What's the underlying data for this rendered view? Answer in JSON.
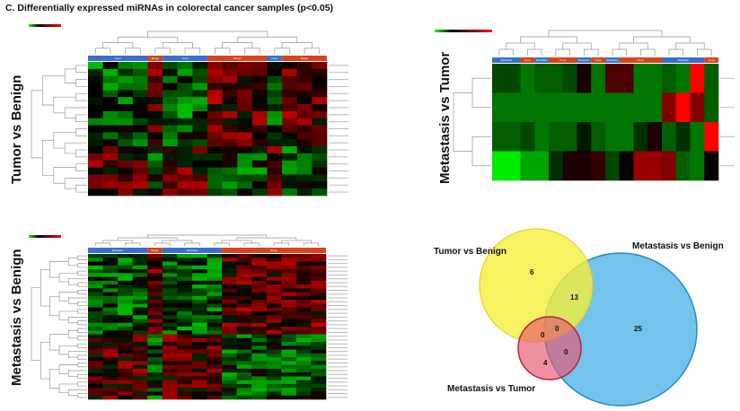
{
  "figure": {
    "title": "C. Differentially expressed miRNAs in colorectal cancer samples (p<0.05)"
  },
  "colors": {
    "low": "#00ff00",
    "mid": "#000000",
    "high": "#ff0000",
    "group_a": "#3a6fcf",
    "group_b": "#d9441c"
  },
  "chart_data": [
    {
      "type": "heatmap",
      "title": "Tumor vs Benign",
      "groups": [
        {
          "label": "Tumor",
          "color": "#3a6fcf",
          "cols": 4
        },
        {
          "label": "Benign",
          "color": "#d9441c",
          "cols": 1
        },
        {
          "label": "Tumor",
          "color": "#3a6fcf",
          "cols": 3
        },
        {
          "label": "Benign",
          "color": "#d9441c",
          "cols": 4
        },
        {
          "label": "Tumor",
          "color": "#3a6fcf",
          "cols": 1
        },
        {
          "label": "Benign",
          "color": "#d9441c",
          "cols": 3
        }
      ],
      "rows": 19,
      "color_scale": "green-black-red"
    },
    {
      "type": "heatmap",
      "title": "Metastasis vs Benign",
      "groups": [
        {
          "label": "Metastasis",
          "color": "#3a6fcf",
          "cols": 4
        },
        {
          "label": "Benign",
          "color": "#d9441c",
          "cols": 1
        },
        {
          "label": "Metastasis",
          "color": "#3a6fcf",
          "cols": 4
        },
        {
          "label": "Benign",
          "color": "#d9441c",
          "cols": 7
        }
      ],
      "rows": 38,
      "color_scale": "green-black-red"
    },
    {
      "type": "heatmap",
      "title": "Metastasis vs Tumor",
      "groups": [
        {
          "label": "Metastasis",
          "color": "#3a6fcf",
          "cols": 2
        },
        {
          "label": "Tumor",
          "color": "#d9441c",
          "cols": 1
        },
        {
          "label": "Metastasis",
          "color": "#3a6fcf",
          "cols": 1
        },
        {
          "label": "Tumor",
          "color": "#d9441c",
          "cols": 2
        },
        {
          "label": "Metastasis",
          "color": "#3a6fcf",
          "cols": 1
        },
        {
          "label": "Tumor",
          "color": "#d9441c",
          "cols": 1
        },
        {
          "label": "Metastasis",
          "color": "#3a6fcf",
          "cols": 1
        },
        {
          "label": "Tumor",
          "color": "#d9441c",
          "cols": 3
        },
        {
          "label": "Metastasis",
          "color": "#3a6fcf",
          "cols": 3
        },
        {
          "label": "Tumor",
          "color": "#d9441c",
          "cols": 1
        }
      ],
      "values": [
        [
          -0.3,
          -0.3,
          -0.5,
          -0.4,
          -0.4,
          -0.3,
          0.1,
          -0.5,
          0.3,
          0.3,
          -0.5,
          -0.5,
          -0.4,
          -0.5,
          1.0,
          -0.4
        ],
        [
          -0.5,
          -0.5,
          -0.5,
          -0.5,
          -0.5,
          -0.5,
          -0.5,
          -0.5,
          -0.5,
          -0.5,
          -0.5,
          -0.5,
          0.5,
          1.0,
          0.5,
          -0.4
        ],
        [
          -0.4,
          -0.4,
          -0.3,
          -0.5,
          -0.4,
          -0.4,
          -0.1,
          -0.4,
          -0.5,
          -0.5,
          -0.2,
          0.1,
          -0.4,
          -0.2,
          -0.5,
          1.0
        ],
        [
          -1.0,
          -1.0,
          -0.7,
          -0.7,
          -0.2,
          0.1,
          0.1,
          0.2,
          -0.3,
          0.0,
          0.6,
          0.6,
          0.5,
          -0.4,
          -0.5,
          0.0
        ]
      ],
      "color_scale": "green-black-red"
    },
    {
      "type": "venn",
      "sets": [
        "Tumor vs Benign",
        "Metastasis vs Benign",
        "Metastasis vs Tumor"
      ],
      "regions": {
        "tumor_benign_only": "6",
        "tumor_benign_and_metastasis_benign": "13",
        "metastasis_benign_only": "25",
        "all_three": "0",
        "tumor_benign_and_metastasis_tumor": "0",
        "metastasis_benign_and_metastasis_tumor": "0",
        "metastasis_tumor_only": "4"
      },
      "colors": {
        "Tumor vs Benign": "#f5ef3a",
        "Metastasis vs Benign": "#5bb8ea",
        "Metastasis vs Tumor": "#e8566e"
      }
    }
  ]
}
